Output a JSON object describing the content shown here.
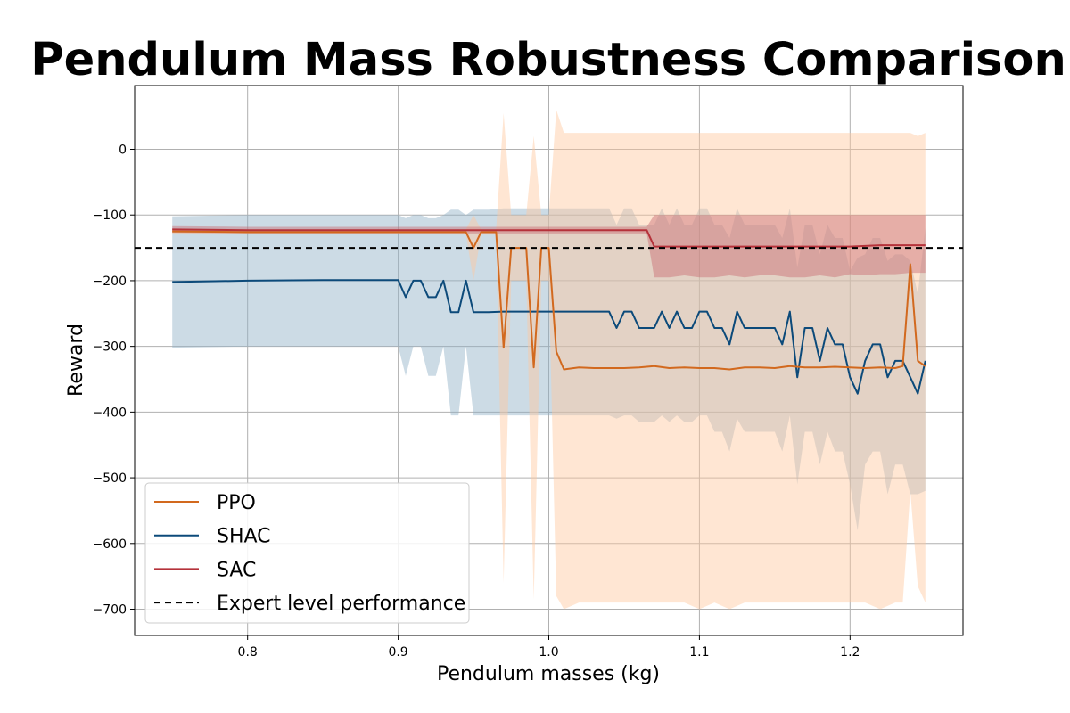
{
  "chart_data": {
    "type": "line",
    "title": "Pendulum Mass Robustness Comparison",
    "xlabel": "Pendulum masses (kg)",
    "ylabel": "Reward",
    "xlim": [
      0.725,
      1.275
    ],
    "ylim": [
      -740,
      97
    ],
    "xticks": [
      0.8,
      0.9,
      1.0,
      1.1,
      1.2
    ],
    "xtick_labels": [
      "0.8",
      "0.9",
      "1.0",
      "1.1",
      "1.2"
    ],
    "yticks": [
      0,
      -100,
      -200,
      -300,
      -400,
      -500,
      -600,
      -700
    ],
    "ytick_labels": [
      "0",
      "−100",
      "−200",
      "−300",
      "−400",
      "−500",
      "−600",
      "−700"
    ],
    "grid": true,
    "legend_position": "lower-left",
    "reference_line": {
      "name": "Expert level performance",
      "y": -150,
      "color": "#000000",
      "style": "dashed"
    },
    "series": [
      {
        "name": "SHAC",
        "color": "#0c4a7a",
        "fill_color": "#8fafc6",
        "x": [
          0.75,
          0.8,
          0.85,
          0.9,
          0.905,
          0.91,
          0.915,
          0.92,
          0.925,
          0.93,
          0.935,
          0.94,
          0.945,
          0.95,
          0.96,
          0.97,
          0.98,
          0.99,
          1.0,
          1.01,
          1.02,
          1.03,
          1.04,
          1.045,
          1.05,
          1.055,
          1.06,
          1.065,
          1.07,
          1.075,
          1.08,
          1.085,
          1.09,
          1.095,
          1.1,
          1.105,
          1.11,
          1.115,
          1.12,
          1.125,
          1.13,
          1.135,
          1.14,
          1.145,
          1.15,
          1.155,
          1.16,
          1.165,
          1.17,
          1.175,
          1.18,
          1.185,
          1.19,
          1.195,
          1.2,
          1.205,
          1.21,
          1.215,
          1.22,
          1.225,
          1.23,
          1.235,
          1.24,
          1.245,
          1.25
        ],
        "y": [
          -202,
          -200,
          -199,
          -199,
          -225,
          -200,
          -200,
          -225,
          -225,
          -200,
          -248,
          -248,
          -200,
          -248,
          -248,
          -247,
          -247,
          -247,
          -247,
          -247,
          -247,
          -247,
          -247,
          -272,
          -247,
          -247,
          -272,
          -272,
          -272,
          -247,
          -272,
          -247,
          -272,
          -272,
          -247,
          -247,
          -272,
          -272,
          -297,
          -247,
          -272,
          -272,
          -272,
          -272,
          -272,
          -297,
          -247,
          -347,
          -272,
          -272,
          -322,
          -272,
          -297,
          -297,
          -347,
          -372,
          -322,
          -297,
          -297,
          -347,
          -322,
          -322,
          -347,
          -372,
          -322
        ],
        "lower": [
          -302,
          -300,
          -300,
          -300,
          -345,
          -300,
          -300,
          -345,
          -345,
          -300,
          -405,
          -405,
          -300,
          -405,
          -405,
          -405,
          -405,
          -405,
          -405,
          -405,
          -405,
          -405,
          -405,
          -410,
          -405,
          -405,
          -415,
          -415,
          -415,
          -405,
          -415,
          -405,
          -415,
          -415,
          -405,
          -405,
          -430,
          -430,
          -460,
          -410,
          -430,
          -430,
          -430,
          -430,
          -430,
          -460,
          -405,
          -510,
          -430,
          -430,
          -480,
          -430,
          -460,
          -460,
          -510,
          -580,
          -480,
          -460,
          -460,
          -525,
          -480,
          -480,
          -525,
          -525,
          -520
        ],
        "upper": [
          -102,
          -100,
          -100,
          -100,
          -105,
          -100,
          -100,
          -105,
          -105,
          -100,
          -92,
          -92,
          -100,
          -92,
          -92,
          -90,
          -90,
          -90,
          -90,
          -90,
          -90,
          -90,
          -90,
          -115,
          -90,
          -90,
          -115,
          -115,
          -115,
          -90,
          -115,
          -90,
          -115,
          -115,
          -90,
          -90,
          -115,
          -115,
          -135,
          -90,
          -115,
          -115,
          -115,
          -115,
          -115,
          -135,
          -90,
          -180,
          -115,
          -115,
          -160,
          -115,
          -135,
          -135,
          -185,
          -165,
          -160,
          -135,
          -135,
          -170,
          -160,
          -160,
          -170,
          -220,
          -120
        ]
      },
      {
        "name": "PPO",
        "color": "#d2691e",
        "fill_color": "#ffc89e",
        "x": [
          0.75,
          0.8,
          0.85,
          0.9,
          0.945,
          0.95,
          0.955,
          0.96,
          0.965,
          0.97,
          0.975,
          0.98,
          0.985,
          0.99,
          0.995,
          1.0,
          1.005,
          1.01,
          1.02,
          1.03,
          1.04,
          1.05,
          1.06,
          1.07,
          1.08,
          1.09,
          1.1,
          1.11,
          1.12,
          1.13,
          1.14,
          1.15,
          1.16,
          1.17,
          1.18,
          1.19,
          1.2,
          1.21,
          1.22,
          1.23,
          1.235,
          1.24,
          1.245,
          1.25
        ],
        "y": [
          -125,
          -126,
          -126,
          -126,
          -126,
          -150,
          -126,
          -126,
          -126,
          -302,
          -150,
          -150,
          -150,
          -332,
          -150,
          -150,
          -308,
          -335,
          -332,
          -333,
          -333,
          -333,
          -332,
          -330,
          -333,
          -332,
          -333,
          -333,
          -335,
          -332,
          -332,
          -333,
          -330,
          -332,
          -332,
          -331,
          -332,
          -333,
          -332,
          -333,
          -330,
          -175,
          -322,
          -330
        ],
        "lower": [
          -128,
          -129,
          -129,
          -129,
          -130,
          -200,
          -130,
          -130,
          -130,
          -660,
          -200,
          -200,
          -200,
          -685,
          -200,
          -200,
          -680,
          -700,
          -690,
          -690,
          -690,
          -690,
          -690,
          -690,
          -690,
          -690,
          -700,
          -690,
          -700,
          -690,
          -690,
          -690,
          -690,
          -690,
          -690,
          -690,
          -690,
          -690,
          -700,
          -690,
          -690,
          -520,
          -665,
          -690
        ],
        "upper": [
          -122,
          -123,
          -123,
          -123,
          -122,
          -100,
          -122,
          -122,
          -122,
          55,
          -100,
          -100,
          -100,
          20,
          -100,
          -100,
          60,
          25,
          25,
          25,
          25,
          25,
          25,
          25,
          25,
          25,
          25,
          25,
          25,
          25,
          25,
          25,
          25,
          25,
          25,
          25,
          25,
          25,
          25,
          25,
          25,
          25,
          20,
          25
        ]
      },
      {
        "name": "SAC",
        "color": "#b5323a",
        "fill_color": "#c86a70",
        "x": [
          0.75,
          0.8,
          0.85,
          0.9,
          0.95,
          1.0,
          1.05,
          1.06,
          1.065,
          1.07,
          1.08,
          1.09,
          1.1,
          1.11,
          1.12,
          1.13,
          1.14,
          1.15,
          1.16,
          1.17,
          1.18,
          1.19,
          1.2,
          1.21,
          1.22,
          1.23,
          1.24,
          1.25
        ],
        "y": [
          -122,
          -123,
          -123,
          -123,
          -123,
          -123,
          -123,
          -123,
          -123,
          -148,
          -148,
          -148,
          -148,
          -148,
          -148,
          -148,
          -148,
          -148,
          -148,
          -148,
          -148,
          -148,
          -148,
          -147,
          -146,
          -146,
          -146,
          -146
        ],
        "lower": [
          -127,
          -128,
          -128,
          -128,
          -128,
          -128,
          -128,
          -128,
          -128,
          -195,
          -195,
          -192,
          -195,
          -195,
          -192,
          -195,
          -192,
          -192,
          -195,
          -195,
          -192,
          -195,
          -190,
          -192,
          -190,
          -190,
          -188,
          -188
        ],
        "upper": [
          -117,
          -118,
          -118,
          -118,
          -118,
          -118,
          -118,
          -118,
          -118,
          -100,
          -100,
          -100,
          -100,
          -100,
          -100,
          -100,
          -100,
          -100,
          -100,
          -100,
          -100,
          -100,
          -100,
          -100,
          -100,
          -100,
          -100,
          -100
        ]
      }
    ],
    "legend_order": [
      "PPO",
      "SHAC",
      "SAC",
      "Expert level performance"
    ]
  }
}
